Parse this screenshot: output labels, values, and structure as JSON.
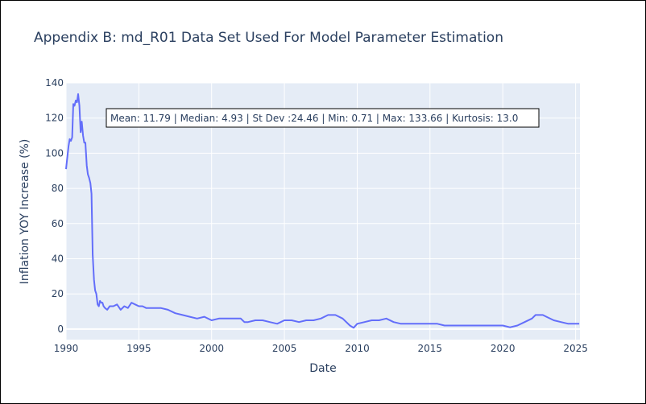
{
  "chart_data": {
    "type": "line",
    "title": "Appendix B: md_R01 Data Set Used For Model Parameter Estimation",
    "xlabel": "Date",
    "ylabel": "Inflation YOY Increase (%)",
    "xlim": [
      1990,
      2025.3
    ],
    "ylim": [
      -6,
      140
    ],
    "x_ticks": [
      1990,
      1995,
      2000,
      2005,
      2010,
      2015,
      2020,
      2025
    ],
    "y_ticks": [
      0,
      20,
      40,
      60,
      80,
      100,
      120,
      140
    ],
    "grid": true,
    "legend": "none",
    "annotation": "Mean: 11.79 | Median: 4.93 | St Dev :24.46 | Min: 0.71 | Max: 133.66 | Kurtosis: 13.0",
    "colors": {
      "line": "#636efa",
      "plot_bg": "#e5ecf6",
      "grid": "#ffffff",
      "text": "#2a3f5f"
    },
    "series": [
      {
        "x": [
          1990.0,
          1990.08,
          1990.17,
          1990.25,
          1990.33,
          1990.42,
          1990.5,
          1990.58,
          1990.67,
          1990.75,
          1990.83,
          1990.92,
          1991.0,
          1991.08,
          1991.17,
          1991.25,
          1991.33,
          1991.42,
          1991.5,
          1991.58,
          1991.67,
          1991.75,
          1991.83,
          1991.92,
          1992.0,
          1992.08,
          1992.17,
          1992.25,
          1992.33,
          1992.42,
          1992.5,
          1992.58,
          1992.67,
          1992.83,
          1993.0,
          1993.25,
          1993.5,
          1993.75,
          1994.0,
          1994.25,
          1994.5,
          1994.75,
          1995.0,
          1995.25,
          1995.5,
          1995.75,
          1996.0,
          1996.5,
          1997.0,
          1997.5,
          1998.0,
          1998.5,
          1999.0,
          1999.5,
          2000.0,
          2000.5,
          2001.0,
          2001.5,
          2002.0,
          2002.25,
          2002.5,
          2003.0,
          2003.5,
          2004.0,
          2004.5,
          2005.0,
          2005.5,
          2006.0,
          2006.5,
          2007.0,
          2007.5,
          2008.0,
          2008.5,
          2009.0,
          2009.5,
          2009.75,
          2010.0,
          2010.5,
          2011.0,
          2011.5,
          2012.0,
          2012.5,
          2013.0,
          2013.5,
          2014.0,
          2014.5,
          2015.0,
          2015.5,
          2016.0,
          2016.5,
          2017.0,
          2017.5,
          2018.0,
          2018.5,
          2019.0,
          2019.5,
          2020.0,
          2020.5,
          2021.0,
          2021.5,
          2022.0,
          2022.25,
          2022.5,
          2022.75,
          2023.0,
          2023.5,
          2024.0,
          2024.5,
          2025.0,
          2025.25
        ],
        "y": [
          91,
          97,
          104,
          108,
          107,
          109,
          128,
          127,
          130,
          129,
          133.66,
          127,
          112,
          118,
          110,
          106,
          106,
          93,
          88,
          86,
          83,
          77,
          42,
          28,
          22,
          20,
          14,
          13,
          16,
          15,
          15,
          13,
          12,
          11,
          13,
          13,
          14,
          11,
          13,
          12,
          15,
          14,
          13,
          13,
          12,
          12,
          12,
          12,
          11,
          9,
          8,
          7,
          6,
          7,
          5,
          6,
          6,
          6,
          6,
          4,
          4,
          5,
          5,
          4,
          3,
          5,
          5,
          4,
          5,
          5,
          6,
          8,
          8,
          6,
          2,
          0.71,
          3,
          4,
          5,
          5,
          6,
          4,
          3,
          3,
          3,
          3,
          3,
          3,
          2,
          2,
          2,
          2,
          2,
          2,
          2,
          2,
          2,
          1,
          2,
          4,
          6,
          8,
          8,
          8,
          7,
          5,
          4,
          3,
          3,
          3
        ]
      }
    ]
  }
}
